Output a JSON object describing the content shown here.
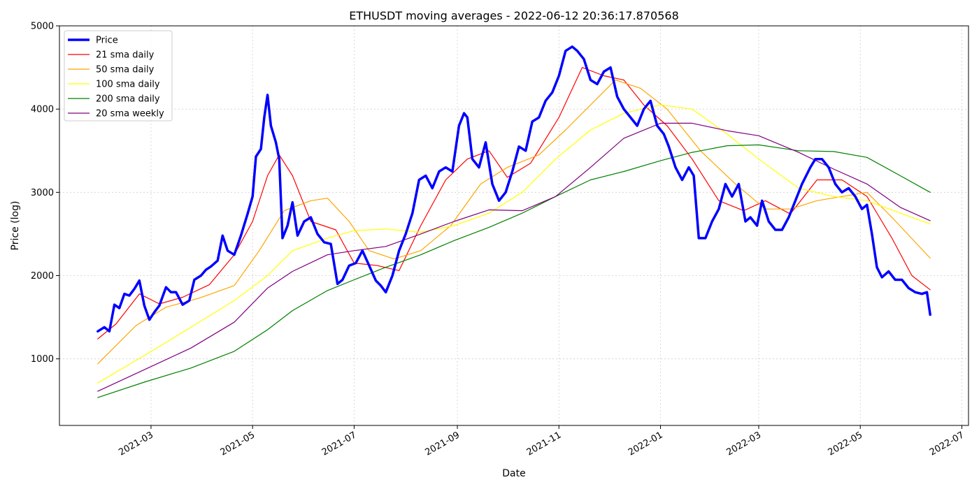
{
  "chart_data": {
    "type": "line",
    "title": "ETHUSDT moving averages - 2022-06-12 20:36:17.870568",
    "xlabel": "Date",
    "ylabel": "Price (log)",
    "ylim": [
      200,
      5000
    ],
    "xlim": [
      "2021-01-05",
      "2022-07-05"
    ],
    "yticks": [
      1000,
      2000,
      3000,
      4000,
      5000
    ],
    "xticks": [
      "2021-03-01",
      "2021-05-01",
      "2021-07-01",
      "2021-09-01",
      "2021-11-01",
      "2022-01-01",
      "2022-03-01",
      "2022-05-01",
      "2022-07-01"
    ],
    "xtick_labels": [
      "2021-03",
      "2021-05",
      "2021-07",
      "2021-09",
      "2021-11",
      "2022-01",
      "2022-03",
      "2022-05",
      "2022-07"
    ],
    "grid": true,
    "legend_position": "upper-left",
    "series": [
      {
        "name": "Price",
        "color": "#0000ff",
        "width": 3.5,
        "x": [
          "2021-01-28",
          "2021-02-01",
          "2021-02-04",
          "2021-02-07",
          "2021-02-10",
          "2021-02-13",
          "2021-02-16",
          "2021-02-19",
          "2021-02-22",
          "2021-02-25",
          "2021-02-28",
          "2021-03-03",
          "2021-03-06",
          "2021-03-10",
          "2021-03-13",
          "2021-03-16",
          "2021-03-20",
          "2021-03-24",
          "2021-03-27",
          "2021-03-31",
          "2021-04-03",
          "2021-04-06",
          "2021-04-10",
          "2021-04-13",
          "2021-04-16",
          "2021-04-20",
          "2021-04-24",
          "2021-04-28",
          "2021-05-01",
          "2021-05-03",
          "2021-05-06",
          "2021-05-08",
          "2021-05-10",
          "2021-05-12",
          "2021-05-15",
          "2021-05-17",
          "2021-05-19",
          "2021-05-22",
          "2021-05-25",
          "2021-05-28",
          "2021-06-01",
          "2021-06-05",
          "2021-06-09",
          "2021-06-13",
          "2021-06-17",
          "2021-06-21",
          "2021-06-24",
          "2021-06-28",
          "2021-07-02",
          "2021-07-06",
          "2021-07-10",
          "2021-07-14",
          "2021-07-17",
          "2021-07-20",
          "2021-07-24",
          "2021-07-28",
          "2021-08-01",
          "2021-08-05",
          "2021-08-09",
          "2021-08-13",
          "2021-08-17",
          "2021-08-21",
          "2021-08-25",
          "2021-08-29",
          "2021-09-02",
          "2021-09-05",
          "2021-09-07",
          "2021-09-10",
          "2021-09-14",
          "2021-09-18",
          "2021-09-22",
          "2021-09-26",
          "2021-09-30",
          "2021-10-04",
          "2021-10-08",
          "2021-10-12",
          "2021-10-16",
          "2021-10-20",
          "2021-10-24",
          "2021-10-28",
          "2021-11-01",
          "2021-11-05",
          "2021-11-09",
          "2021-11-12",
          "2021-11-16",
          "2021-11-20",
          "2021-11-24",
          "2021-11-28",
          "2021-12-02",
          "2021-12-06",
          "2021-12-10",
          "2021-12-14",
          "2021-12-18",
          "2021-12-22",
          "2021-12-26",
          "2021-12-30",
          "2022-01-03",
          "2022-01-06",
          "2022-01-10",
          "2022-01-14",
          "2022-01-18",
          "2022-01-21",
          "2022-01-24",
          "2022-01-28",
          "2022-02-01",
          "2022-02-05",
          "2022-02-09",
          "2022-02-13",
          "2022-02-17",
          "2022-02-21",
          "2022-02-24",
          "2022-02-28",
          "2022-03-03",
          "2022-03-07",
          "2022-03-11",
          "2022-03-15",
          "2022-03-19",
          "2022-03-23",
          "2022-03-27",
          "2022-04-01",
          "2022-04-04",
          "2022-04-08",
          "2022-04-12",
          "2022-04-16",
          "2022-04-20",
          "2022-04-24",
          "2022-04-28",
          "2022-05-02",
          "2022-05-05",
          "2022-05-08",
          "2022-05-11",
          "2022-05-14",
          "2022-05-18",
          "2022-05-22",
          "2022-05-26",
          "2022-05-30",
          "2022-06-03",
          "2022-06-07",
          "2022-06-10",
          "2022-06-12"
        ],
        "y": [
          1330,
          1380,
          1330,
          1650,
          1610,
          1780,
          1760,
          1840,
          1940,
          1640,
          1470,
          1560,
          1640,
          1860,
          1800,
          1800,
          1650,
          1700,
          1950,
          2000,
          2070,
          2110,
          2180,
          2480,
          2300,
          2250,
          2480,
          2740,
          2950,
          3430,
          3520,
          3900,
          4170,
          3800,
          3600,
          3400,
          2450,
          2600,
          2880,
          2480,
          2650,
          2700,
          2500,
          2400,
          2380,
          1900,
          1950,
          2120,
          2150,
          2300,
          2120,
          1940,
          1880,
          1800,
          2000,
          2300,
          2500,
          2750,
          3150,
          3200,
          3050,
          3250,
          3300,
          3250,
          3800,
          3950,
          3900,
          3400,
          3300,
          3600,
          3100,
          2900,
          3000,
          3250,
          3550,
          3500,
          3850,
          3900,
          4100,
          4200,
          4400,
          4700,
          4750,
          4700,
          4600,
          4350,
          4300,
          4450,
          4500,
          4150,
          4000,
          3900,
          3800,
          4000,
          4100,
          3800,
          3700,
          3550,
          3300,
          3150,
          3300,
          3200,
          2450,
          2450,
          2650,
          2800,
          3100,
          2950,
          3100,
          2650,
          2700,
          2600,
          2900,
          2650,
          2550,
          2550,
          2700,
          2900,
          3100,
          3300,
          3400,
          3400,
          3300,
          3100,
          3000,
          3050,
          2950,
          2800,
          2850,
          2500,
          2100,
          1980,
          2050,
          1950,
          1950,
          1850,
          1800,
          1780,
          1800,
          1530
        ]
      },
      {
        "name": "21 sma daily",
        "color": "#ff0000",
        "width": 1.2,
        "x": [
          "2021-01-28",
          "2021-02-08",
          "2021-02-22",
          "2021-03-06",
          "2021-03-20",
          "2021-04-05",
          "2021-04-20",
          "2021-05-01",
          "2021-05-10",
          "2021-05-17",
          "2021-05-25",
          "2021-06-05",
          "2021-06-20",
          "2021-07-01",
          "2021-07-15",
          "2021-07-28",
          "2021-08-10",
          "2021-08-25",
          "2021-09-07",
          "2021-09-20",
          "2021-10-01",
          "2021-10-15",
          "2021-11-01",
          "2021-11-15",
          "2021-11-28",
          "2021-12-10",
          "2021-12-22",
          "2022-01-05",
          "2022-01-20",
          "2022-02-05",
          "2022-02-20",
          "2022-03-05",
          "2022-03-20",
          "2022-04-05",
          "2022-04-20",
          "2022-05-05",
          "2022-05-20",
          "2022-06-01",
          "2022-06-12"
        ],
        "y": [
          1240,
          1420,
          1780,
          1660,
          1740,
          1890,
          2250,
          2650,
          3200,
          3450,
          3200,
          2650,
          2550,
          2150,
          2120,
          2060,
          2600,
          3150,
          3400,
          3500,
          3180,
          3350,
          3900,
          4500,
          4400,
          4350,
          4050,
          3800,
          3400,
          2900,
          2780,
          2900,
          2740,
          3150,
          3150,
          2950,
          2450,
          2000,
          1830
        ]
      },
      {
        "name": "50 sma daily",
        "color": "#ffa500",
        "width": 1.2,
        "x": [
          "2021-01-28",
          "2021-02-20",
          "2021-03-10",
          "2021-03-30",
          "2021-04-20",
          "2021-05-05",
          "2021-05-20",
          "2021-06-05",
          "2021-06-15",
          "2021-06-28",
          "2021-07-10",
          "2021-07-25",
          "2021-08-10",
          "2021-08-28",
          "2021-09-15",
          "2021-10-01",
          "2021-10-20",
          "2021-11-05",
          "2021-11-25",
          "2021-12-05",
          "2021-12-20",
          "2022-01-05",
          "2022-01-25",
          "2022-02-15",
          "2022-03-05",
          "2022-03-20",
          "2022-04-05",
          "2022-04-20",
          "2022-05-05",
          "2022-05-20",
          "2022-06-12"
        ],
        "y": [
          940,
          1400,
          1620,
          1730,
          1880,
          2300,
          2780,
          2900,
          2930,
          2650,
          2300,
          2200,
          2300,
          2600,
          3100,
          3300,
          3450,
          3750,
          4150,
          4350,
          4250,
          4000,
          3500,
          3100,
          2800,
          2800,
          2900,
          2950,
          3000,
          2700,
          2210
        ]
      },
      {
        "name": "100 sma daily",
        "color": "#ffff00",
        "width": 1.2,
        "x": [
          "2021-01-28",
          "2021-02-25",
          "2021-03-25",
          "2021-04-20",
          "2021-05-10",
          "2021-05-25",
          "2021-06-15",
          "2021-07-01",
          "2021-07-20",
          "2021-08-10",
          "2021-08-30",
          "2021-09-20",
          "2021-10-10",
          "2021-10-30",
          "2021-11-20",
          "2021-12-10",
          "2022-01-01",
          "2022-01-20",
          "2022-02-10",
          "2022-03-01",
          "2022-03-25",
          "2022-04-15",
          "2022-05-05",
          "2022-05-25",
          "2022-06-12"
        ],
        "y": [
          710,
          1040,
          1380,
          1700,
          2000,
          2300,
          2450,
          2540,
          2560,
          2520,
          2600,
          2750,
          3000,
          3400,
          3750,
          3950,
          4050,
          4000,
          3700,
          3400,
          3050,
          2950,
          2900,
          2750,
          2620
        ]
      },
      {
        "name": "200 sma daily",
        "color": "#008000",
        "width": 1.2,
        "x": [
          "2021-01-28",
          "2021-02-25",
          "2021-03-25",
          "2021-04-20",
          "2021-05-10",
          "2021-05-25",
          "2021-06-15",
          "2021-07-01",
          "2021-07-20",
          "2021-08-10",
          "2021-08-30",
          "2021-09-20",
          "2021-10-10",
          "2021-10-30",
          "2021-11-20",
          "2021-12-10",
          "2022-01-01",
          "2022-01-20",
          "2022-02-10",
          "2022-03-01",
          "2022-03-25",
          "2022-04-15",
          "2022-05-05",
          "2022-05-25",
          "2022-06-12"
        ],
        "y": [
          535,
          720,
          890,
          1090,
          1350,
          1580,
          1820,
          1950,
          2100,
          2250,
          2420,
          2580,
          2750,
          2950,
          3150,
          3250,
          3380,
          3480,
          3560,
          3570,
          3500,
          3490,
          3420,
          3200,
          3000
        ]
      },
      {
        "name": "20 sma weekly",
        "color": "#800080",
        "width": 1.2,
        "x": [
          "2021-01-28",
          "2021-02-25",
          "2021-03-25",
          "2021-04-20",
          "2021-05-10",
          "2021-05-25",
          "2021-06-15",
          "2021-07-01",
          "2021-07-20",
          "2021-08-10",
          "2021-08-30",
          "2021-09-20",
          "2021-10-10",
          "2021-10-30",
          "2021-11-20",
          "2021-12-10",
          "2022-01-01",
          "2022-01-20",
          "2022-02-10",
          "2022-03-01",
          "2022-03-25",
          "2022-04-15",
          "2022-05-05",
          "2022-05-25",
          "2022-06-12"
        ],
        "y": [
          610,
          870,
          1130,
          1440,
          1850,
          2050,
          2250,
          2300,
          2350,
          2500,
          2650,
          2790,
          2780,
          2950,
          3300,
          3650,
          3830,
          3830,
          3740,
          3680,
          3480,
          3280,
          3100,
          2820,
          2660
        ]
      }
    ]
  }
}
